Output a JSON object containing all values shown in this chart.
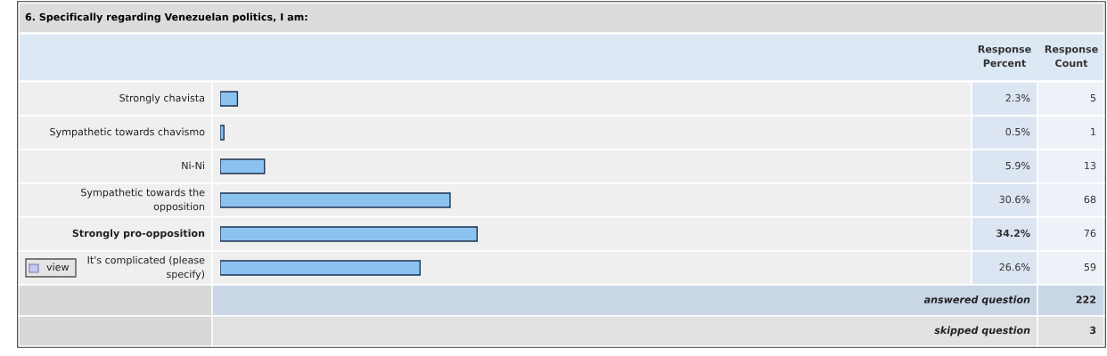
{
  "chart_data": {
    "type": "bar",
    "orientation": "horizontal",
    "title": "6. Specifically regarding Venezuelan politics, I am:",
    "categories": [
      "Strongly chavista",
      "Sympathetic towards chavismo",
      "Ni-Ni",
      "Sympathetic towards the opposition",
      "Strongly pro-opposition",
      "It's complicated (please specify)"
    ],
    "values": [
      2.3,
      0.5,
      5.9,
      30.6,
      34.2,
      26.6
    ],
    "value_labels": [
      "2.3%",
      "0.5%",
      "5.9%",
      "30.6%",
      "34.2%",
      "26.6%"
    ],
    "color": "#8cc2f0",
    "xlim": [
      0,
      100
    ],
    "annotations": [
      "Response Percent",
      "Response Count",
      "5",
      "1",
      "13",
      "68",
      "76",
      "59",
      "answered question",
      "222",
      "skipped question",
      "3",
      "view"
    ],
    "data_labels": false,
    "legend": false
  }
}
